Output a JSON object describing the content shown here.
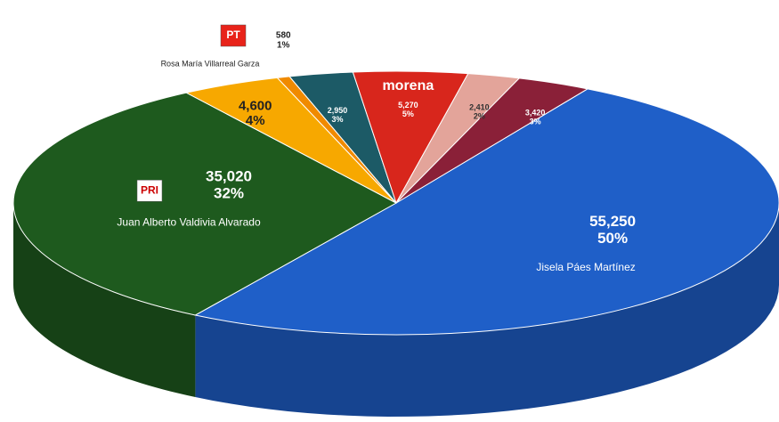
{
  "chart_data": {
    "type": "pie3d",
    "names": [
      "Jisela Páes Martínez",
      "Juan Alberto Valdivia Alvarado",
      "Rosa María Villarreal Garza",
      null,
      null,
      null,
      null,
      null
    ],
    "values": [
      55250,
      35020,
      4600,
      580,
      2950,
      5270,
      2410,
      3420
    ],
    "value_labels": [
      "55,250",
      "35,020",
      "4,600",
      "580",
      "2,950",
      "5,270",
      "2,410",
      "3,420"
    ],
    "percents": [
      50,
      32,
      4,
      1,
      3,
      5,
      2,
      3
    ],
    "percent_labels": [
      "50%",
      "32%",
      "4%",
      "1%",
      "3%",
      "5%",
      "2%",
      "3%"
    ],
    "logos": [
      null,
      "PRI",
      "PT",
      null,
      null,
      "morena",
      null,
      null
    ],
    "colors": [
      "#1f5fc8",
      "#1e5a1e",
      "#f7a800",
      "#f08a00",
      "#1c5a66",
      "#d8261c",
      "#e3a49a",
      "#8a2038"
    ]
  }
}
